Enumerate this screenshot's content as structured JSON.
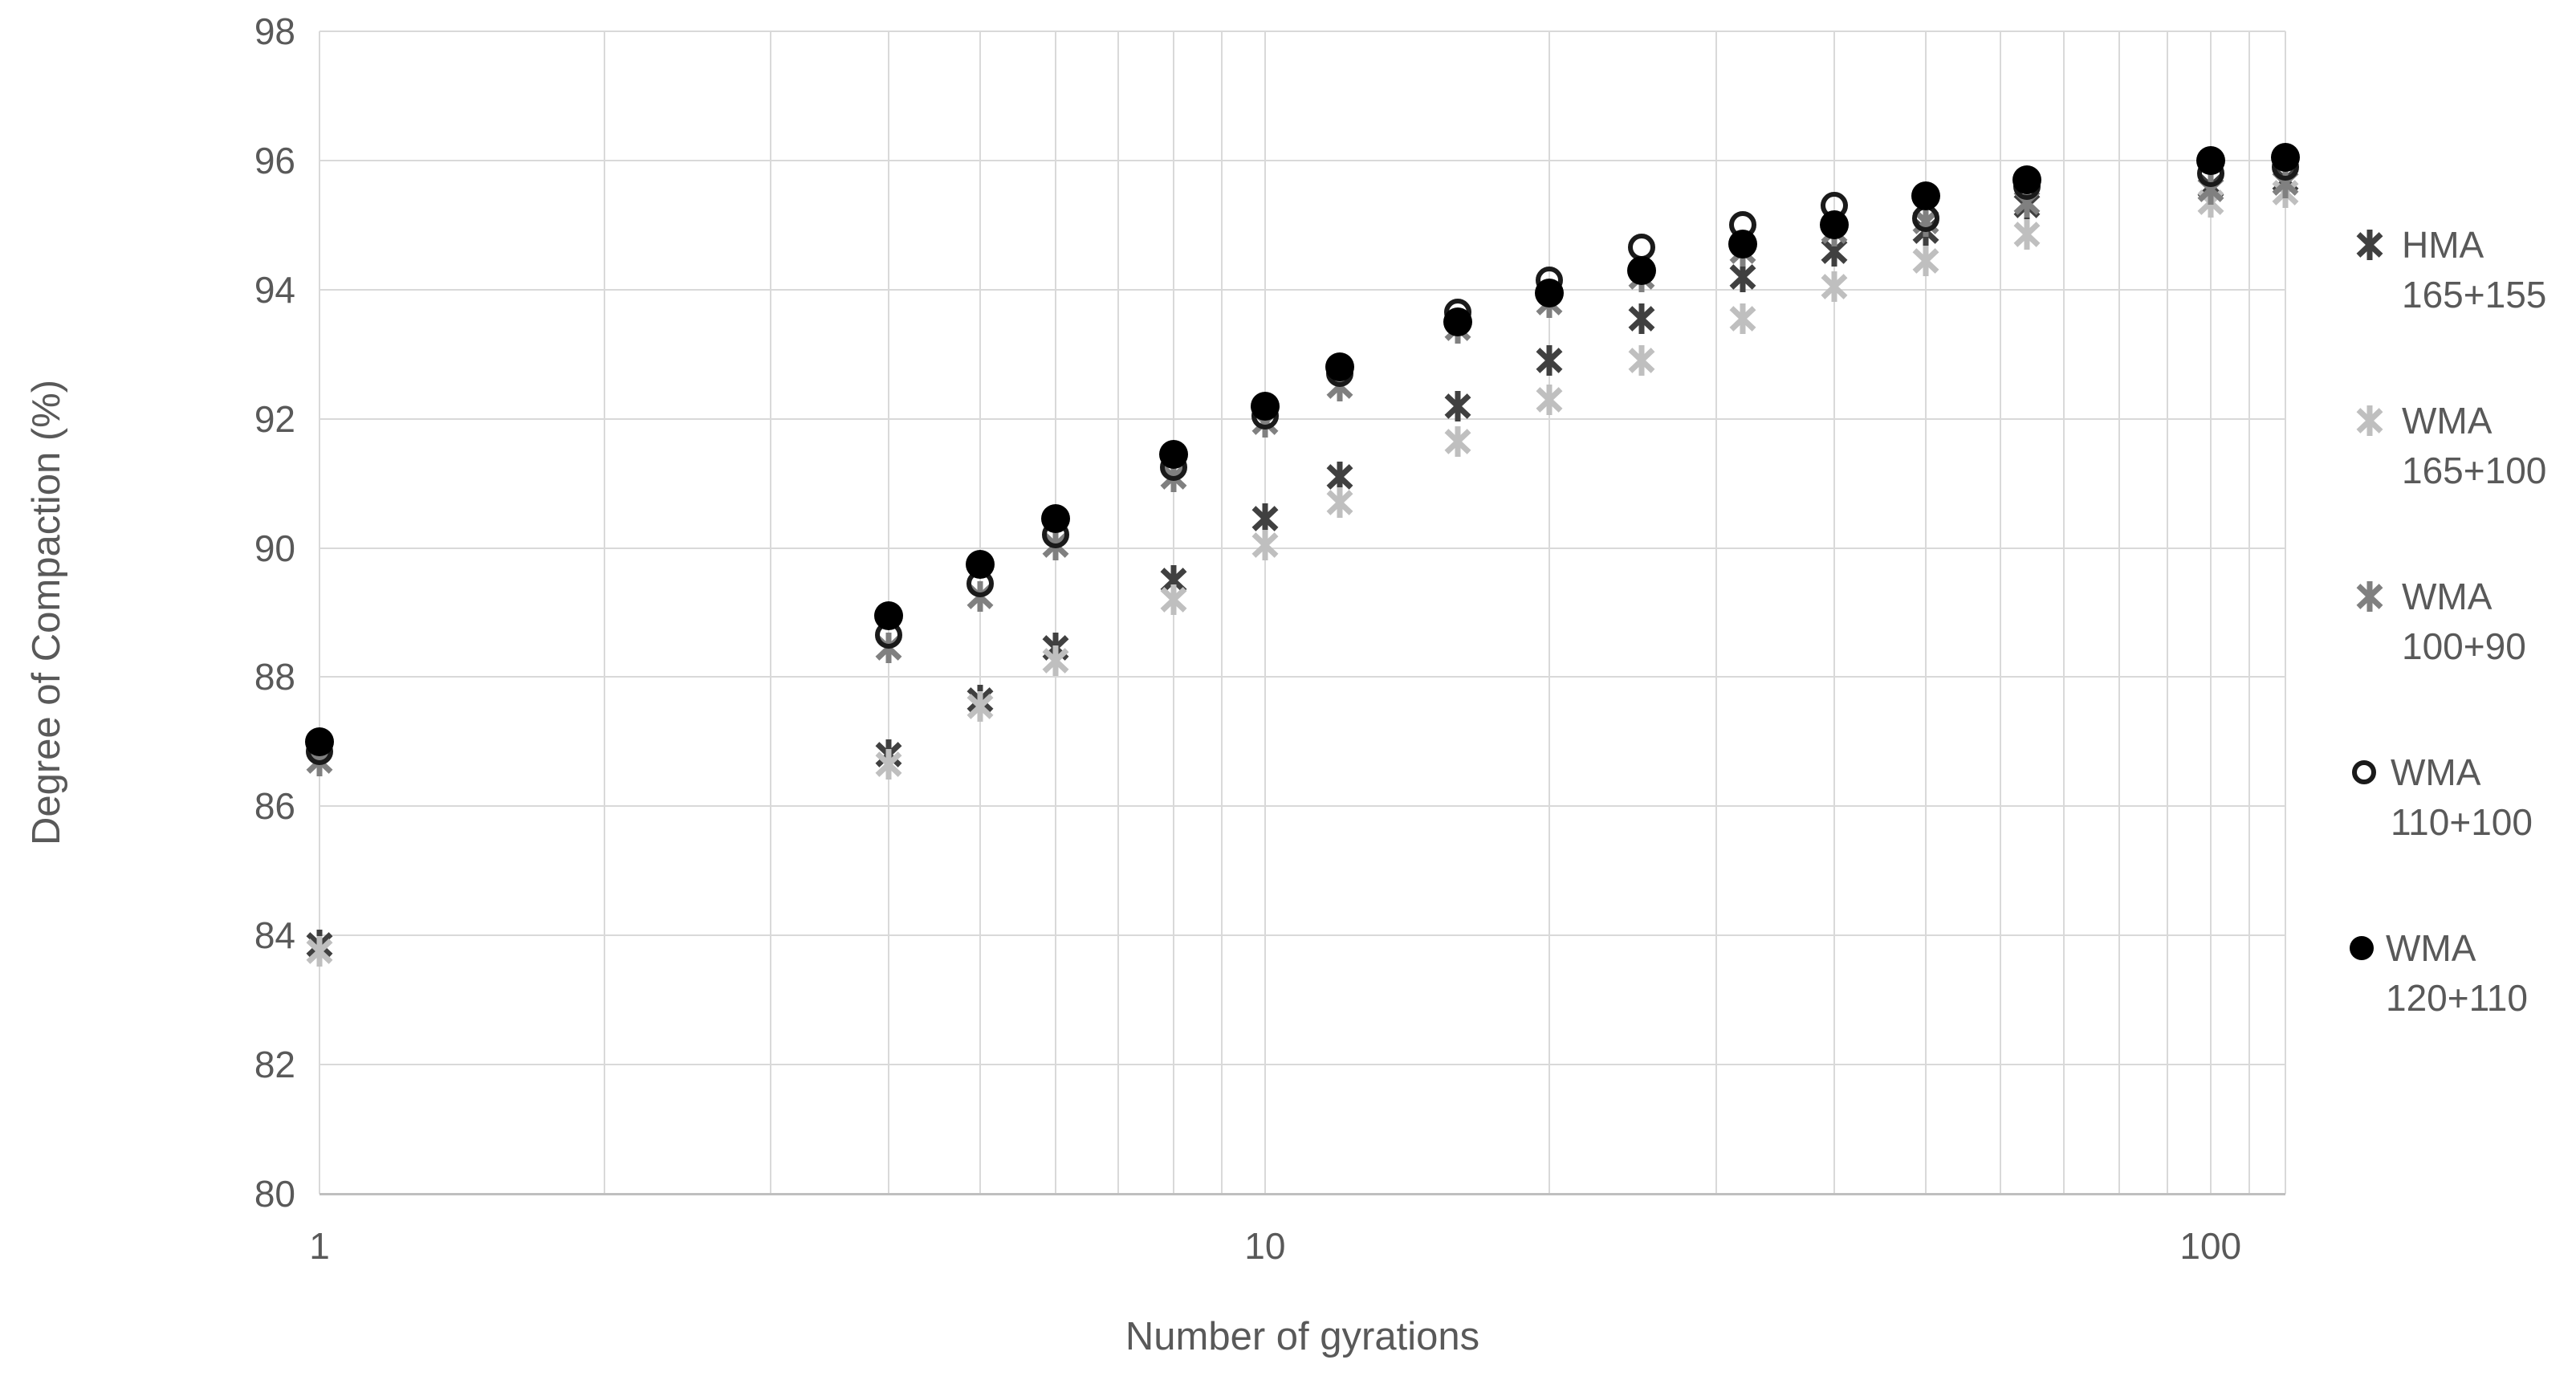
{
  "chart_data": {
    "type": "scatter",
    "title": "",
    "xlabel": "Number of gyrations",
    "ylabel": "Degree of Compaction (%)",
    "x_scale": "log",
    "xlim": [
      1,
      120
    ],
    "ylim": [
      80,
      98
    ],
    "grid": true,
    "legend_position": "right",
    "y_ticks": [
      80,
      82,
      84,
      86,
      88,
      90,
      92,
      94,
      96,
      98
    ],
    "x_ticks": [
      {
        "value": 1,
        "label": "1"
      },
      {
        "value": 10,
        "label": "10"
      },
      {
        "value": 100,
        "label": "100"
      }
    ],
    "x_gridlines": [
      1,
      2,
      3,
      4,
      5,
      6,
      7,
      8,
      9,
      10,
      20,
      30,
      40,
      50,
      60,
      70,
      80,
      90,
      100,
      110,
      120
    ],
    "x": [
      1,
      4,
      5,
      6,
      8,
      10,
      12,
      16,
      20,
      25,
      32,
      40,
      50,
      64,
      100,
      120
    ],
    "series": [
      {
        "name": "HMA 165+155",
        "legend_lines": [
          "HMA",
          "165+155"
        ],
        "marker": "asterisk",
        "color": "#404040",
        "values": [
          83.85,
          86.8,
          87.65,
          88.45,
          89.5,
          90.45,
          91.1,
          92.2,
          92.9,
          93.55,
          94.2,
          94.6,
          94.9,
          95.3,
          95.6,
          95.7
        ]
      },
      {
        "name": "WMA 165+100",
        "legend_lines": [
          "WMA",
          "165+100"
        ],
        "marker": "asterisk",
        "color": "#bfbfbf",
        "values": [
          83.75,
          86.65,
          87.55,
          88.25,
          89.2,
          90.05,
          90.7,
          91.65,
          92.3,
          92.9,
          93.55,
          94.05,
          94.45,
          94.85,
          95.35,
          95.5
        ]
      },
      {
        "name": "WMA 100+90",
        "legend_lines": [
          "WMA",
          "100+90"
        ],
        "marker": "asterisk",
        "color": "#808080",
        "values": [
          86.7,
          88.45,
          89.25,
          90.05,
          91.1,
          91.95,
          92.5,
          93.4,
          93.8,
          94.2,
          94.6,
          94.9,
          95.05,
          95.35,
          95.55,
          95.65
        ]
      },
      {
        "name": "WMA 110+100",
        "legend_lines": [
          "WMA",
          "110+100"
        ],
        "marker": "open-circle",
        "color": "#1a1a1a",
        "values": [
          86.85,
          88.65,
          89.45,
          90.2,
          91.25,
          92.05,
          92.7,
          93.65,
          94.15,
          94.65,
          95.0,
          95.3,
          95.1,
          95.6,
          95.8,
          95.9
        ]
      },
      {
        "name": "WMA 120+110",
        "legend_lines": [
          "WMA",
          "120+110"
        ],
        "marker": "filled-circle",
        "color": "#000000",
        "values": [
          87.0,
          88.95,
          89.75,
          90.45,
          91.45,
          92.2,
          92.8,
          93.5,
          93.95,
          94.3,
          94.7,
          95.0,
          95.45,
          95.7,
          96.0,
          96.05
        ]
      }
    ],
    "colors": {
      "gridline": "#d9d9d9",
      "axis_line": "#bfbfbf",
      "text": "#595959",
      "background": "#ffffff"
    }
  }
}
